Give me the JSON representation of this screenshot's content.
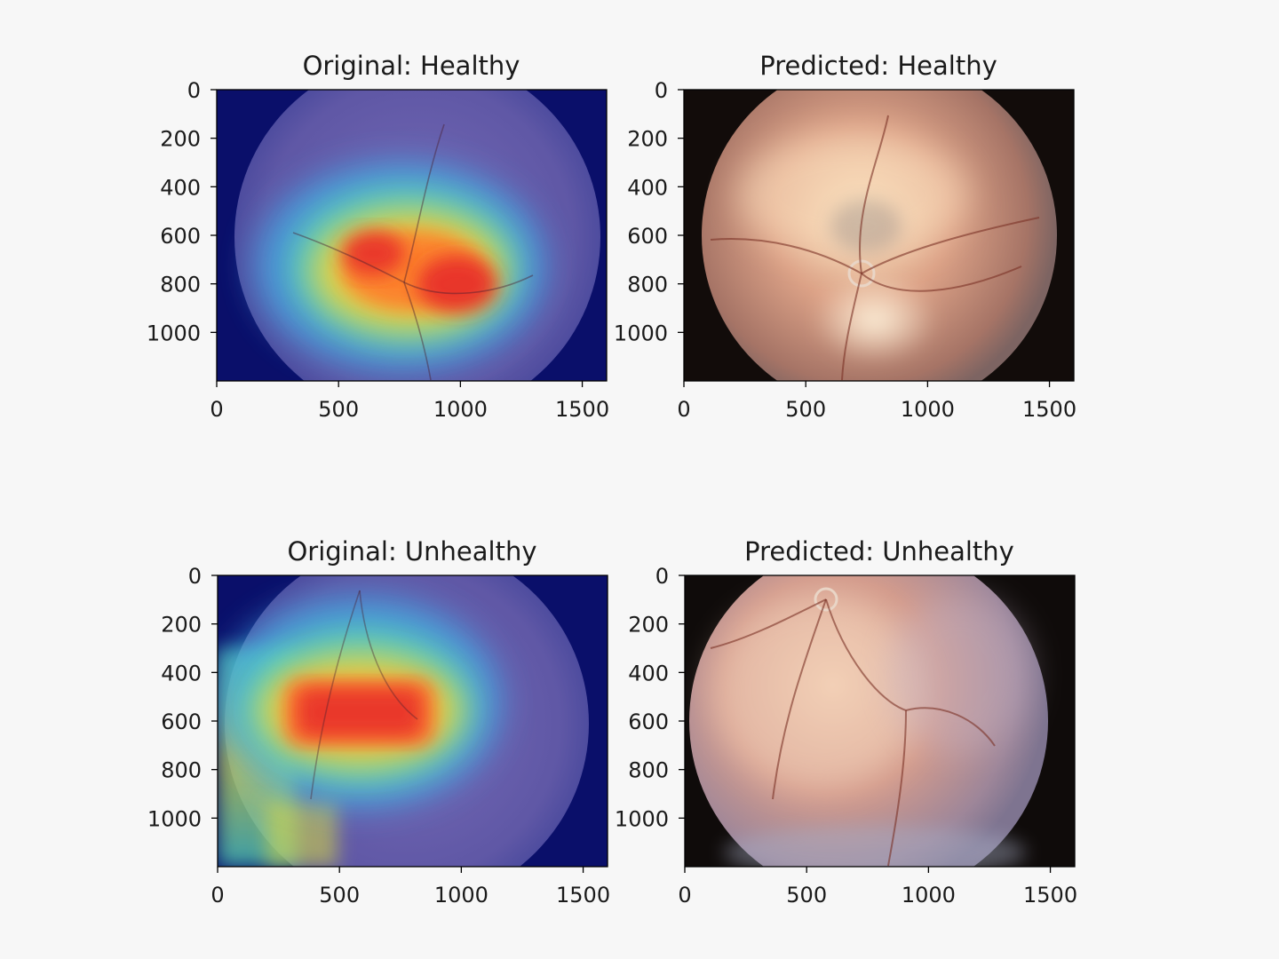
{
  "chart_data": [
    {
      "type": "image",
      "title": "Original: Healthy",
      "content": "grad-cam heatmap over retinal fundus",
      "xlim": [
        0,
        1600
      ],
      "ylim": [
        1200,
        0
      ],
      "xticks": [
        0,
        500,
        1000,
        1500
      ],
      "yticks": [
        0,
        200,
        400,
        600,
        800,
        1000
      ],
      "colors": {
        "bg": "#0a0f6a",
        "fundus": "#7a6fb5",
        "hot": "#e8302a",
        "warm": "#f2d13a",
        "cool": "#4fd6c0"
      }
    },
    {
      "type": "image",
      "title": "Predicted: Healthy",
      "content": "retinal fundus photograph",
      "xlim": [
        0,
        1600
      ],
      "ylim": [
        1200,
        0
      ],
      "xticks": [
        0,
        500,
        1000,
        1500
      ],
      "yticks": [
        0,
        200,
        400,
        600,
        800,
        1000
      ],
      "colors": {
        "bg": "#120c0a",
        "center": "#f7dcb8",
        "edge": "#8d6a60"
      }
    },
    {
      "type": "image",
      "title": "Original: Unhealthy",
      "content": "grad-cam heatmap over retinal fundus",
      "xlim": [
        0,
        1600
      ],
      "ylim": [
        1200,
        0
      ],
      "xticks": [
        0,
        500,
        1000,
        1500
      ],
      "yticks": [
        0,
        200,
        400,
        600,
        800,
        1000
      ],
      "colors": {
        "bg": "#0a0f6a",
        "fundus": "#7a6fb5",
        "hot": "#e8302a",
        "warm": "#f2d13a",
        "cool": "#4fd6c0"
      }
    },
    {
      "type": "image",
      "title": "Predicted: Unhealthy",
      "content": "retinal fundus photograph",
      "xlim": [
        0,
        1600
      ],
      "ylim": [
        1200,
        0
      ],
      "xticks": [
        0,
        500,
        1000,
        1500
      ],
      "yticks": [
        0,
        200,
        400,
        600,
        800,
        1000
      ],
      "colors": {
        "bg": "#0f0b0a",
        "center": "#e9c4ae",
        "edge": "#8e7a90"
      }
    }
  ]
}
